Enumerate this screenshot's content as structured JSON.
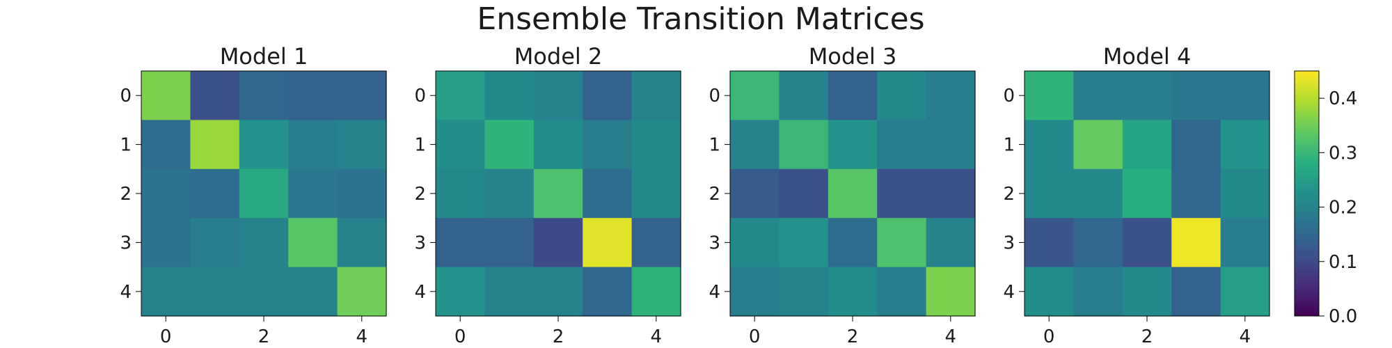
{
  "chart_data": {
    "type": "heatmap",
    "title": "Ensemble Transition Matrices",
    "x_ticks": [
      "0",
      "2",
      "4"
    ],
    "y_ticks": [
      "0",
      "1",
      "2",
      "3",
      "4"
    ],
    "colorbar": {
      "range": [
        0.0,
        0.45
      ],
      "colormap": "viridis",
      "ticks": [
        "0.0",
        "0.1",
        "0.2",
        "0.3",
        "0.4"
      ],
      "tick_values": [
        0.0,
        0.1,
        0.2,
        0.3,
        0.4
      ]
    },
    "panels": [
      {
        "title": "Model 1",
        "matrix": [
          [
            0.36,
            0.11,
            0.15,
            0.14,
            0.14
          ],
          [
            0.16,
            0.38,
            0.23,
            0.19,
            0.2
          ],
          [
            0.17,
            0.16,
            0.27,
            0.18,
            0.17
          ],
          [
            0.17,
            0.19,
            0.2,
            0.33,
            0.2
          ],
          [
            0.2,
            0.2,
            0.2,
            0.2,
            0.35
          ]
        ]
      },
      {
        "title": "Model 2",
        "matrix": [
          [
            0.25,
            0.21,
            0.2,
            0.14,
            0.2
          ],
          [
            0.22,
            0.29,
            0.22,
            0.19,
            0.21
          ],
          [
            0.21,
            0.2,
            0.32,
            0.16,
            0.21
          ],
          [
            0.14,
            0.14,
            0.1,
            0.43,
            0.14
          ],
          [
            0.23,
            0.2,
            0.2,
            0.15,
            0.29
          ]
        ]
      },
      {
        "title": "Model 3",
        "matrix": [
          [
            0.3,
            0.2,
            0.14,
            0.21,
            0.19
          ],
          [
            0.2,
            0.3,
            0.23,
            0.19,
            0.19
          ],
          [
            0.13,
            0.11,
            0.33,
            0.11,
            0.11
          ],
          [
            0.21,
            0.23,
            0.16,
            0.32,
            0.2
          ],
          [
            0.19,
            0.2,
            0.22,
            0.19,
            0.36
          ]
        ]
      },
      {
        "title": "Model 4",
        "matrix": [
          [
            0.29,
            0.19,
            0.19,
            0.18,
            0.18
          ],
          [
            0.21,
            0.34,
            0.26,
            0.15,
            0.23
          ],
          [
            0.21,
            0.21,
            0.28,
            0.15,
            0.21
          ],
          [
            0.12,
            0.15,
            0.11,
            0.44,
            0.19
          ],
          [
            0.22,
            0.19,
            0.21,
            0.14,
            0.25
          ]
        ]
      }
    ]
  }
}
